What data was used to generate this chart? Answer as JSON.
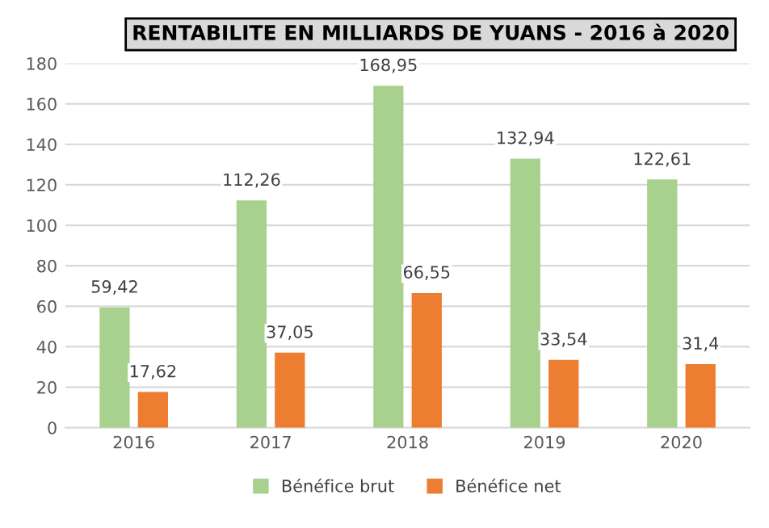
{
  "chart_data": {
    "type": "bar",
    "title": "RENTABILITE EN MILLIARDS DE YUANS - 2016 à 2020",
    "categories": [
      "2016",
      "2017",
      "2018",
      "2019",
      "2020"
    ],
    "series": [
      {
        "name": "Bénéfice brut",
        "color": "#a9d18e",
        "values": [
          59.42,
          112.26,
          168.95,
          132.94,
          122.61
        ],
        "value_labels": [
          "59,42",
          "112,26",
          "168,95",
          "132,94",
          "122,61"
        ]
      },
      {
        "name": "Bénéfice net",
        "color": "#ed7d31",
        "values": [
          17.62,
          37.05,
          66.55,
          33.54,
          31.4
        ],
        "value_labels": [
          "17,62",
          "37,05",
          "66,55",
          "33,54",
          "31,4"
        ]
      }
    ],
    "ylim": [
      0,
      180
    ],
    "yticks": [
      0,
      20,
      40,
      60,
      80,
      100,
      120,
      140,
      160,
      180
    ],
    "grid": "y",
    "legend": "bottom"
  }
}
